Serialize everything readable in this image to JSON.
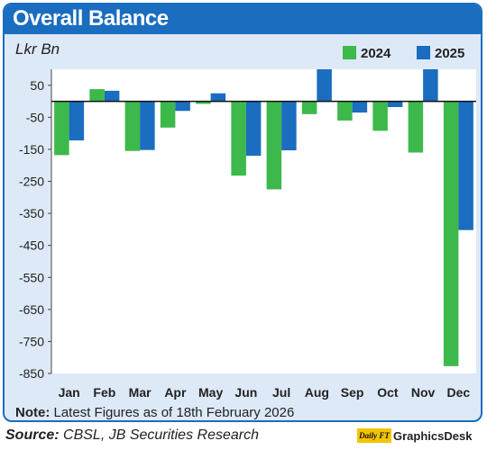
{
  "header": {
    "title": "Overall Balance",
    "unit": "Lkr Bn"
  },
  "legend": [
    {
      "label": "2024",
      "color": "#3cb94a"
    },
    {
      "label": "2025",
      "color": "#1a6dbf"
    }
  ],
  "chart_data": {
    "type": "bar",
    "title": "Overall Balance",
    "ylabel": "Lkr Bn",
    "xlabel": "",
    "categories": [
      "Jan",
      "Feb",
      "Mar",
      "Apr",
      "May",
      "Jun",
      "Jul",
      "Aug",
      "Sep",
      "Oct",
      "Nov",
      "Dec"
    ],
    "series": [
      {
        "name": "2024",
        "color": "#3cb94a",
        "values": [
          -168,
          38,
          -155,
          -82,
          -8,
          -232,
          -275,
          -40,
          -60,
          -92,
          -160,
          -827
        ]
      },
      {
        "name": "2025",
        "color": "#1a6dbf",
        "values": [
          -122,
          33,
          -152,
          -30,
          25,
          -170,
          -153,
          100,
          -35,
          -18,
          100,
          -402
        ]
      }
    ],
    "yticks": [
      50,
      -50,
      -150,
      -250,
      -350,
      -450,
      -550,
      -650,
      -750,
      -850
    ],
    "ylim": [
      -850,
      100
    ],
    "grid": false,
    "legend_position": "top-right"
  },
  "footer": {
    "note_label": "Note:",
    "note_text": " Latest Figures as of 18th February 2026",
    "source_label": "Source:",
    "source_text": " CBSL, JB Securities Research",
    "brand_logo": "Daily FT",
    "brand_text": "GraphicsDesk"
  }
}
